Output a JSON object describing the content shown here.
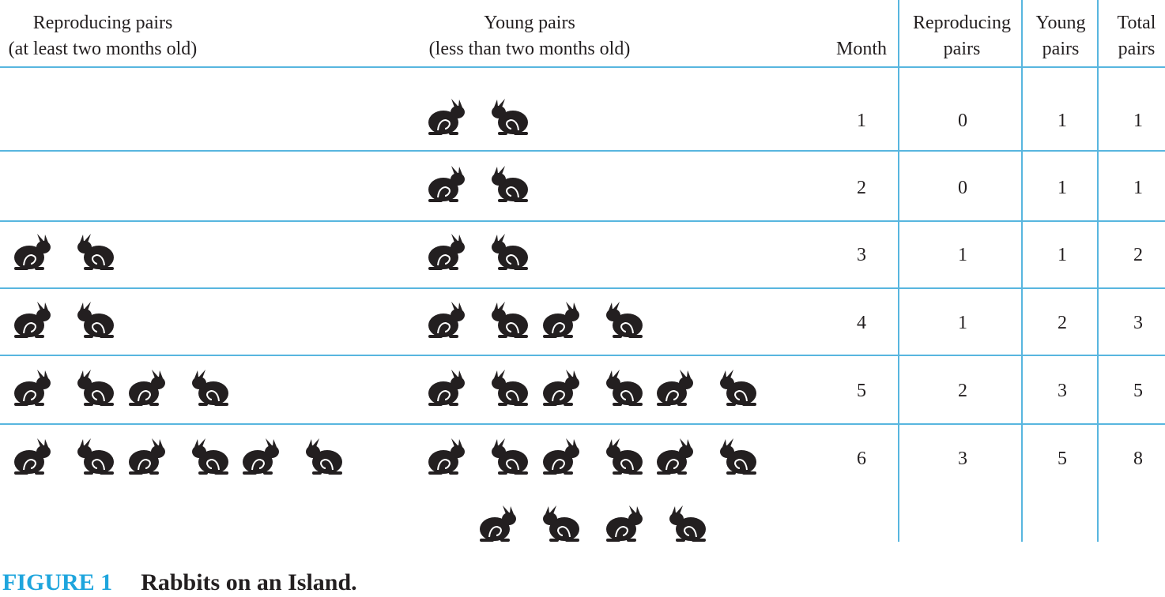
{
  "headers": {
    "reproducing_visual": {
      "line1": "Reproducing pairs",
      "line2": "(at least two months old)"
    },
    "young_visual": {
      "line1": "Young pairs",
      "line2": "(less than two months old)"
    },
    "month": "Month",
    "reproducing": {
      "line1": "Reproducing",
      "line2": "pairs"
    },
    "young": {
      "line1": "Young",
      "line2": "pairs"
    },
    "total": {
      "line1": "Total",
      "line2": "pairs"
    }
  },
  "rows": [
    {
      "month": "1",
      "reproducing": "0",
      "young": "1",
      "total": "1"
    },
    {
      "month": "2",
      "reproducing": "0",
      "young": "1",
      "total": "1"
    },
    {
      "month": "3",
      "reproducing": "1",
      "young": "1",
      "total": "2"
    },
    {
      "month": "4",
      "reproducing": "1",
      "young": "2",
      "total": "3"
    },
    {
      "month": "5",
      "reproducing": "2",
      "young": "3",
      "total": "5"
    },
    {
      "month": "6",
      "reproducing": "3",
      "young": "5",
      "total": "8"
    }
  ],
  "icon": "rabbit-pair-icon",
  "colors": {
    "rule": "#58b6df",
    "caption_number": "#1ea5dd",
    "ink": "#231f20"
  },
  "caption": {
    "number": "FIGURE 1",
    "title": "Rabbits on an Island."
  }
}
